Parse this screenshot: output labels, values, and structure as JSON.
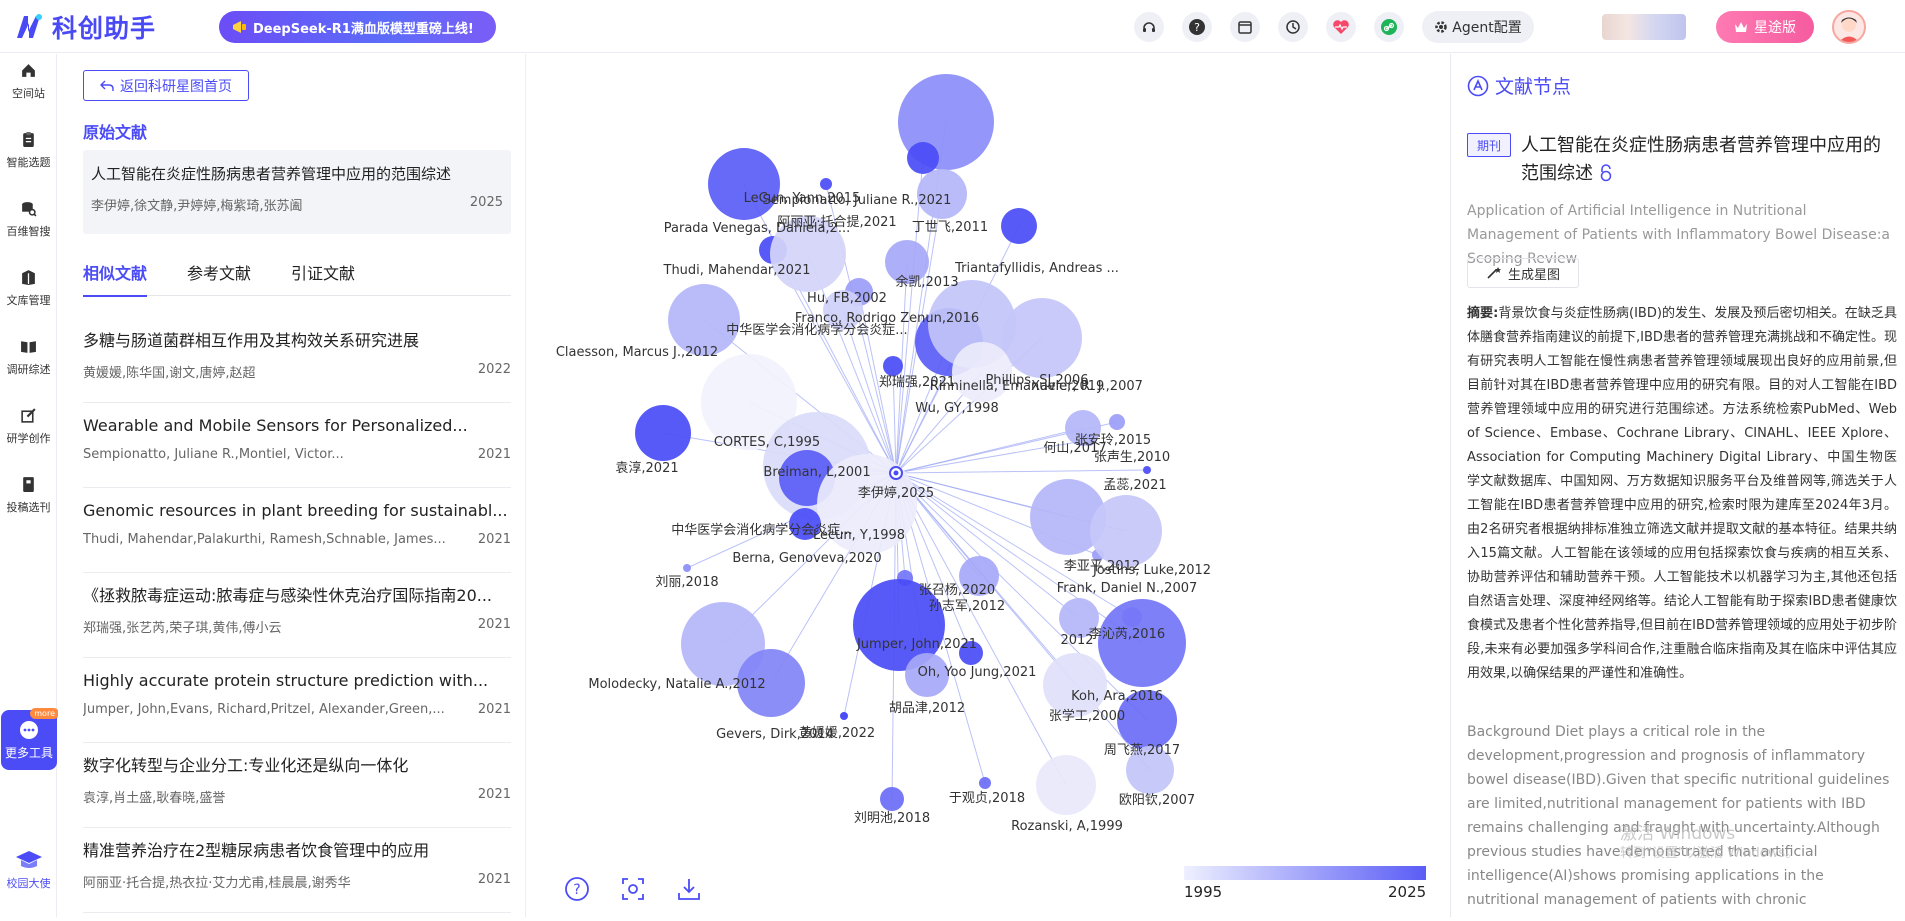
{
  "app": {
    "name": "科创助手",
    "promo": "DeepSeek-R1满血版模型重磅上线!",
    "agent_label": "Agent配置",
    "vip_label": "星途版"
  },
  "nav": [
    {
      "label": "空间站",
      "icon": "home-icon"
    },
    {
      "label": "智能选题",
      "icon": "clipboard-icon"
    },
    {
      "label": "百维智搜",
      "icon": "search-db-icon"
    },
    {
      "label": "文库管理",
      "icon": "library-icon"
    },
    {
      "label": "调研综述",
      "icon": "book-icon"
    },
    {
      "label": "研学创作",
      "icon": "edit-icon"
    },
    {
      "label": "投稿选刊",
      "icon": "journal-icon"
    }
  ],
  "nav_more": {
    "label": "更多工具",
    "badge": "more"
  },
  "nav_campus": "校园大使",
  "left": {
    "back_label": "返回科研星图首页",
    "original_heading": "原始文献",
    "original": {
      "title": "人工智能在炎症性肠病患者营养管理中应用的范围综述",
      "authors": "李伊婷,徐文静,尹婷婷,梅紫琦,张苏阖",
      "year": "2025"
    },
    "tabs": [
      "相似文献",
      "参考文献",
      "引证文献"
    ],
    "items": [
      {
        "title": "多糖与肠道菌群相互作用及其构效关系研究进展",
        "authors": "黄媛媛,陈华国,谢文,唐婷,赵超",
        "year": "2022"
      },
      {
        "title": "Wearable and Mobile Sensors for Personalized...",
        "authors": "Sempionatto, Juliane R.,Montiel, Victor...",
        "year": "2021"
      },
      {
        "title": "Genomic resources in plant breeding for sustainabl...",
        "authors": "Thudi, Mahendar,Palakurthi, Ramesh,Schnable, James...",
        "year": "2021"
      },
      {
        "title": "《拯救脓毒症运动:脓毒症与感染性休克治疗国际指南20...",
        "authors": "郑瑞强,张艺芮,荣子琪,黄伟,傅小云",
        "year": "2021"
      },
      {
        "title": "Highly accurate protein structure prediction with...",
        "authors": "Jumper, John,Evans, Richard,Pritzel, Alexander,Green,...",
        "year": "2021"
      },
      {
        "title": "数字化转型与企业分工:专业化还是纵向一体化",
        "authors": "袁淳,肖土盛,耿春晓,盛誉",
        "year": "2021"
      },
      {
        "title": "精准营养治疗在2型糖尿病患者饮食管理中的应用",
        "authors": "阿丽亚·托合提,热衣拉·艾力尤甫,桂晨晨,谢秀华",
        "year": "2021"
      }
    ]
  },
  "graph": {
    "center_label": "李伊婷,2025",
    "legend_min": "1995",
    "legend_max": "2025",
    "nodes": [
      {
        "label": "LeCun, Yann,2015",
        "color": "#8b8ef8"
      },
      {
        "label": "Sempionatto, Juliane R.,2021",
        "color": "#4a4cf6"
      },
      {
        "label": "阿丽亚·托合提,2021",
        "color": "#4a4cf6"
      },
      {
        "label": "Parada Venegas, Daniela,2...",
        "color": "#5a5cf6"
      },
      {
        "label": "丁世飞,2011",
        "color": "#b4b6f8"
      },
      {
        "label": "Triantafyllidis, Andreas ...",
        "color": "#4a4cf6"
      },
      {
        "label": "Thudi, Mahendar,2021",
        "color": "#4a4cf6"
      },
      {
        "label": "余凯,2013",
        "color": "#a6a8f7"
      },
      {
        "label": "Hu, FB,2002",
        "color": "#d4d5f9"
      },
      {
        "label": "Franco, Rodrigo Zenun,2016",
        "color": "#9b9df7"
      },
      {
        "label": "中华医学会消化病学分会炎症...",
        "color": "#cfd0f9"
      },
      {
        "label": "Claesson, Marcus J.,2012",
        "color": "#b4b6f8"
      },
      {
        "label": "郑瑞强,2021",
        "color": "#4a4cf6"
      },
      {
        "label": "Rinninella, Emanuele,2019",
        "color": "#5a5cf6"
      },
      {
        "label": "Phillips, SJ,2006",
        "color": "#c2c4f8"
      },
      {
        "label": "Xavier, R. J.,2007",
        "color": "#c4c5f9"
      },
      {
        "label": "Wu, GY,1998",
        "color": "#ebebfb"
      },
      {
        "label": "CORTES, C,1995",
        "color": "#f2f2fd"
      },
      {
        "label": "何山,2017",
        "color": "#8e90f7"
      },
      {
        "label": "张安玲,2015",
        "color": "#9b9df7"
      },
      {
        "label": "张声生,2010",
        "color": "#b4b6f8"
      },
      {
        "label": "袁淳,2021",
        "color": "#4a4cf6"
      },
      {
        "label": "Breiman, L,2001",
        "color": "#dadbf9"
      },
      {
        "label": "孟蕊,2021",
        "color": "#4a4cf6"
      },
      {
        "label": "中华医学会消化病学分会炎症...",
        "color": "#5a5cf6"
      },
      {
        "label": "Lecun, Y,1998",
        "color": "#ebebfb"
      },
      {
        "label": "Berna, Genoveva,2020",
        "color": "#4a4cf6"
      },
      {
        "label": "李亚平,2012",
        "color": "#9b9df7"
      },
      {
        "label": "Jostins, Luke,2012",
        "color": "#b4b6f8"
      },
      {
        "label": "刘丽,2018",
        "color": "#8b8ef8"
      },
      {
        "label": "张召杨,2020",
        "color": "#7375f7"
      },
      {
        "label": "Frank, Daniel N.,2007",
        "color": "#c6c7f9"
      },
      {
        "label": "孙志军,2012",
        "color": "#a6a8f7"
      },
      {
        "label": "2012",
        "color": "#b4b6f8"
      },
      {
        "label": "李沁芮,2016",
        "color": "#8e90f7"
      },
      {
        "label": "Jumper, John,2021",
        "color": "#4a4cf6"
      },
      {
        "label": "Oh, Yoo Jung,2021",
        "color": "#4a4cf6"
      },
      {
        "label": "Molodecky, Natalie A.,2012",
        "color": "#b4b6f8"
      },
      {
        "label": "Koh, Ara,2016",
        "color": "#7375f7"
      },
      {
        "label": "黄媛媛,2022",
        "color": "#3c3ef5"
      },
      {
        "label": "胡品津,2012",
        "color": "#a6a8f7"
      },
      {
        "label": "Gevers, Dirk,2014",
        "color": "#8284f7"
      },
      {
        "label": "张学工,2000",
        "color": "#e0e1fa"
      },
      {
        "label": "周飞燕,2017",
        "color": "#6a6cf6"
      },
      {
        "label": "于观贞,2018",
        "color": "#6a6cf6"
      },
      {
        "label": "欧阳钦,2007",
        "color": "#c2c4f8"
      },
      {
        "label": "刘明池,2018",
        "color": "#6a6cf6"
      },
      {
        "label": "Rozanski, A,1999",
        "color": "#e8e8fb"
      }
    ]
  },
  "right": {
    "header": "文献节点",
    "tag": "期刊",
    "title": "人工智能在炎症性肠病患者营养管理中应用的范围综述",
    "en_title": "Application of Artificial Intelligence in Nutritional Management of Patients with Inflammatory Bowel Disease:a Scoping Review",
    "star_btn": "生成星图",
    "abstract_label": "摘要:",
    "abstract": "背景饮食与炎症性肠病(IBD)的发生、发展及预后密切相关。在缺乏具体膳食营养指南建议的前提下,IBD患者的营养管理充满挑战和不确定性。现有研究表明人工智能在慢性病患者营养管理领域展现出良好的应用前景,但目前针对其在IBD患者营养管理中应用的研究有限。目的对人工智能在IBD营养管理领域中应用的研究进行范围综述。方法系统检索PubMed、Web of Science、Embase、Cochrane Library、CINAHL、IEEE Xplore、Association for Computing Machinery Digital Library、中国生物医学文献数据库、中国知网、万方数据知识服务平台及维普网等,筛选关于人工智能在IBD患者营养管理中应用的研究,检索时限为建库至2024年3月。由2名研究者根据纳排标准独立筛选文献并提取文献的基本特征。结果共纳入15篇文献。人工智能在该领域的应用包括探索饮食与疾病的相互关系、协助营养评估和辅助营养干预。人工智能技术以机器学习为主,其他还包括自然语言处理、深度神经网络等。结论人工智能有助于探索IBD患者健康饮食模式及患者个性化营养指导,但目前在IBD营养管理领域的应用处于初步阶段,未来有必要加强多学科间合作,注重融合临床指南及其在临床中评估其应用效果,以确保结果的严谨性和准确性。",
    "en_abstract": "Background Diet plays a critical role in the development,progression and prognosis of inflammatory bowel disease(IBD).Given that specific nutritional guidelines are limited,nutritional management for patients with IBD remains challenging and fraught with uncertainty.Although previous studies have demonstrated that artificial intelligence(AI)shows promising applications in the nutritional management of patients with chronic diseases,research specifically focused on"
  },
  "watermark": {
    "line1": "激活 Windows",
    "line2": "转到\"设置\"以激活 Windows。"
  }
}
